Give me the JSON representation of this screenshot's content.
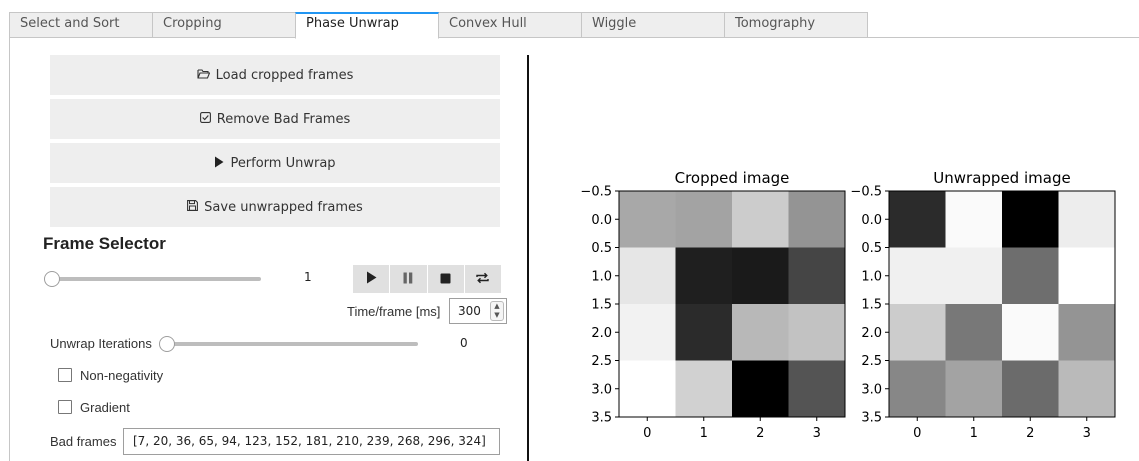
{
  "tabs": [
    {
      "label": "Select and Sort",
      "active": false
    },
    {
      "label": "Cropping",
      "active": false
    },
    {
      "label": "Phase Unwrap",
      "active": true
    },
    {
      "label": "Convex Hull",
      "active": false
    },
    {
      "label": "Wiggle",
      "active": false
    },
    {
      "label": "Tomography",
      "active": false
    }
  ],
  "buttons": {
    "load": {
      "label": "Load cropped frames",
      "icon": "folder-open-icon"
    },
    "remove": {
      "label": "Remove Bad Frames",
      "icon": "check-square-icon"
    },
    "unwrap": {
      "label": "Perform Unwrap",
      "icon": "play-icon"
    },
    "save": {
      "label": "Save unwrapped frames",
      "icon": "save-icon"
    }
  },
  "frame_selector": {
    "heading": "Frame Selector",
    "value": "1",
    "slider_fraction": 0.0,
    "player_icons": [
      "play-icon",
      "pause-icon",
      "stop-icon",
      "repeat-icon"
    ],
    "interval_label": "Time/frame [ms]",
    "interval_value": "300"
  },
  "unwrap": {
    "iterations_label": "Unwrap Iterations",
    "iterations_value": "0",
    "slider_fraction": 0.0,
    "non_negativity_label": "Non-negativity",
    "non_negativity_checked": false,
    "gradient_label": "Gradient",
    "gradient_checked": false
  },
  "bad_frames": {
    "label": "Bad frames",
    "value": "[7, 20, 36, 65, 94, 123, 152, 181, 210, 239, 268, 296, 324]"
  },
  "chart_data": [
    {
      "type": "heatmap",
      "title": "Cropped image",
      "colormap": "gray",
      "x_ticks": [
        "0",
        "1",
        "2",
        "3"
      ],
      "y_ticks": [
        "−0.5",
        "0.0",
        "0.5",
        "1.0",
        "1.5",
        "2.0",
        "2.5",
        "3.0",
        "3.5"
      ],
      "xlim": [
        -0.5,
        3.5
      ],
      "ylim": [
        3.5,
        -0.5
      ],
      "values": [
        [
          0.66,
          0.64,
          0.8,
          0.58
        ],
        [
          0.9,
          0.12,
          0.1,
          0.27
        ],
        [
          0.95,
          0.17,
          0.72,
          0.76
        ],
        [
          1.0,
          0.82,
          0.0,
          0.33
        ]
      ]
    },
    {
      "type": "heatmap",
      "title": "Unwrapped image",
      "colormap": "gray",
      "x_ticks": [
        "0",
        "1",
        "2",
        "3"
      ],
      "y_ticks": [
        "−0.5",
        "0.0",
        "0.5",
        "1.0",
        "1.5",
        "2.0",
        "2.5",
        "3.0",
        "3.5"
      ],
      "xlim": [
        -0.5,
        3.5
      ],
      "ylim": [
        3.5,
        -0.5
      ],
      "values": [
        [
          0.17,
          0.98,
          0.0,
          0.93
        ],
        [
          0.94,
          0.94,
          0.43,
          1.0
        ],
        [
          0.8,
          0.47,
          0.98,
          0.58
        ],
        [
          0.53,
          0.64,
          0.42,
          0.73
        ]
      ]
    }
  ]
}
